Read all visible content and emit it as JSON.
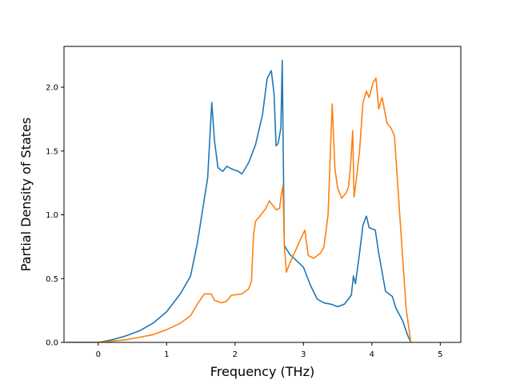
{
  "chart_data": {
    "type": "line",
    "title": "",
    "xlabel": "Frequency (THz)",
    "ylabel": "Partial Density of States",
    "xlim": [
      -0.5,
      5.3
    ],
    "ylim": [
      0,
      2.32
    ],
    "xticks": [
      0,
      1,
      2,
      3,
      4,
      5
    ],
    "xtick_labels": [
      "0",
      "1",
      "2",
      "3",
      "4",
      "5"
    ],
    "yticks": [
      0.0,
      0.5,
      1.0,
      1.5,
      2.0
    ],
    "ytick_labels": [
      "0.0",
      "0.5",
      "1.0",
      "1.5",
      "2.0"
    ],
    "grid": false,
    "legend": "none",
    "series": [
      {
        "color": "#1f77b4",
        "x": [
          -0.47,
          0.0,
          0.2,
          0.4,
          0.6,
          0.8,
          1.0,
          1.2,
          1.35,
          1.45,
          1.55,
          1.6,
          1.66,
          1.7,
          1.75,
          1.82,
          1.88,
          1.95,
          2.05,
          2.1,
          2.2,
          2.3,
          2.4,
          2.47,
          2.53,
          2.57,
          2.6,
          2.63,
          2.67,
          2.69,
          2.72,
          2.8,
          2.9,
          3.0,
          3.1,
          3.2,
          3.3,
          3.4,
          3.5,
          3.6,
          3.7,
          3.73,
          3.76,
          3.82,
          3.87,
          3.92,
          3.96,
          4.05,
          4.1,
          4.2,
          4.3,
          4.35,
          4.45,
          4.52,
          4.57
        ],
        "y": [
          0.0,
          0.0,
          0.02,
          0.05,
          0.09,
          0.15,
          0.24,
          0.38,
          0.52,
          0.78,
          1.12,
          1.29,
          1.88,
          1.58,
          1.37,
          1.34,
          1.38,
          1.36,
          1.34,
          1.32,
          1.41,
          1.55,
          1.78,
          2.07,
          2.13,
          1.95,
          1.54,
          1.56,
          1.68,
          2.21,
          0.76,
          0.69,
          0.64,
          0.59,
          0.45,
          0.34,
          0.31,
          0.3,
          0.28,
          0.3,
          0.37,
          0.52,
          0.46,
          0.7,
          0.92,
          0.99,
          0.9,
          0.88,
          0.7,
          0.4,
          0.36,
          0.27,
          0.17,
          0.06,
          0.0
        ]
      },
      {
        "color": "#ff7f0e",
        "x": [
          -0.47,
          0.0,
          0.2,
          0.4,
          0.6,
          0.8,
          1.0,
          1.2,
          1.35,
          1.45,
          1.55,
          1.65,
          1.7,
          1.8,
          1.87,
          1.95,
          2.1,
          2.2,
          2.24,
          2.27,
          2.3,
          2.35,
          2.45,
          2.5,
          2.6,
          2.65,
          2.68,
          2.7,
          2.72,
          2.75,
          2.8,
          2.95,
          3.02,
          3.07,
          3.15,
          3.25,
          3.3,
          3.36,
          3.42,
          3.46,
          3.5,
          3.56,
          3.62,
          3.66,
          3.69,
          3.72,
          3.74,
          3.76,
          3.82,
          3.87,
          3.92,
          3.96,
          4.02,
          4.06,
          4.1,
          4.15,
          4.22,
          4.28,
          4.33,
          4.4,
          4.5,
          4.57
        ],
        "y": [
          0.0,
          0.0,
          0.01,
          0.02,
          0.04,
          0.06,
          0.1,
          0.15,
          0.21,
          0.3,
          0.38,
          0.38,
          0.33,
          0.31,
          0.32,
          0.37,
          0.38,
          0.42,
          0.48,
          0.84,
          0.95,
          0.98,
          1.05,
          1.11,
          1.04,
          1.05,
          1.17,
          1.23,
          0.77,
          0.55,
          0.62,
          0.8,
          0.88,
          0.68,
          0.66,
          0.7,
          0.75,
          1.0,
          1.87,
          1.36,
          1.21,
          1.13,
          1.17,
          1.22,
          1.4,
          1.66,
          1.14,
          1.22,
          1.5,
          1.88,
          1.97,
          1.92,
          2.04,
          2.07,
          1.83,
          1.92,
          1.72,
          1.68,
          1.62,
          1.06,
          0.27,
          0.0
        ]
      }
    ]
  }
}
